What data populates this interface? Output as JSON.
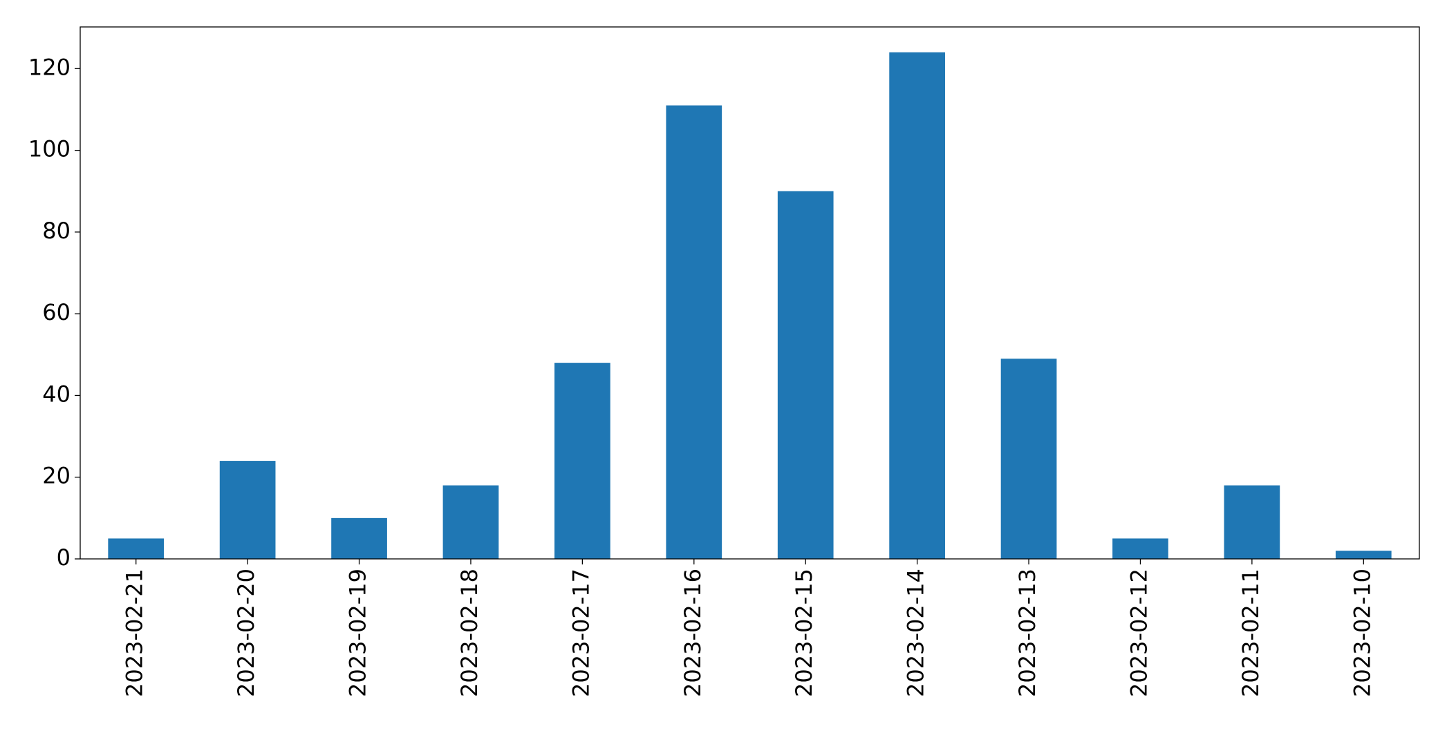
{
  "chart_data": {
    "type": "bar",
    "categories": [
      "2023-02-21",
      "2023-02-20",
      "2023-02-19",
      "2023-02-18",
      "2023-02-17",
      "2023-02-16",
      "2023-02-15",
      "2023-02-14",
      "2023-02-13",
      "2023-02-12",
      "2023-02-11",
      "2023-02-10"
    ],
    "values": [
      5,
      24,
      10,
      18,
      48,
      111,
      90,
      124,
      49,
      5,
      18,
      2
    ],
    "color": "#1f77b4",
    "ylim": [
      0,
      130.2
    ],
    "yticks": [
      0,
      20,
      40,
      60,
      80,
      100,
      120
    ],
    "grid": false
  }
}
